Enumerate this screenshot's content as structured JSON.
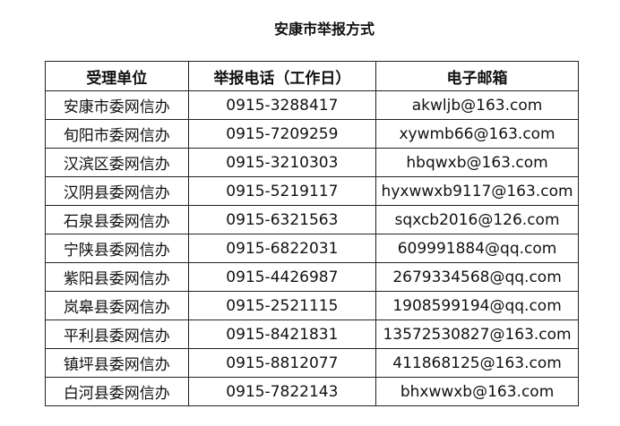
{
  "title": "安康市举报方式",
  "table": {
    "headers": [
      "受理单位",
      "举报电话（工作日）",
      "电子邮箱"
    ],
    "rows": [
      [
        "安康市委网信办",
        "0915-3288417",
        "akwljb@163.com"
      ],
      [
        "旬阳市委网信办",
        "0915-7209259",
        "xywmb66@163.com"
      ],
      [
        "汉滨区委网信办",
        "0915-3210303",
        "hbqwxb@163.com"
      ],
      [
        "汉阴县委网信办",
        "0915-5219117",
        "hyxwwxb9117@163.com"
      ],
      [
        "石泉县委网信办",
        "0915-6321563",
        "sqxcb2016@126.com"
      ],
      [
        "宁陕县委网信办",
        "0915-6822031",
        "609991884@qq.com"
      ],
      [
        "紫阳县委网信办",
        "0915-4426987",
        "2679334568@qq.com"
      ],
      [
        "岚皋县委网信办",
        "0915-2521115",
        "1908599194@qq.com"
      ],
      [
        "平利县委网信办",
        "0915-8421831",
        "13572530827@163.com"
      ],
      [
        "镇坪县委网信办",
        "0915-8812077",
        "411868125@163.com"
      ],
      [
        "白河县委网信办",
        "0915-7822143",
        "bhxwwxb@163.com"
      ]
    ]
  }
}
